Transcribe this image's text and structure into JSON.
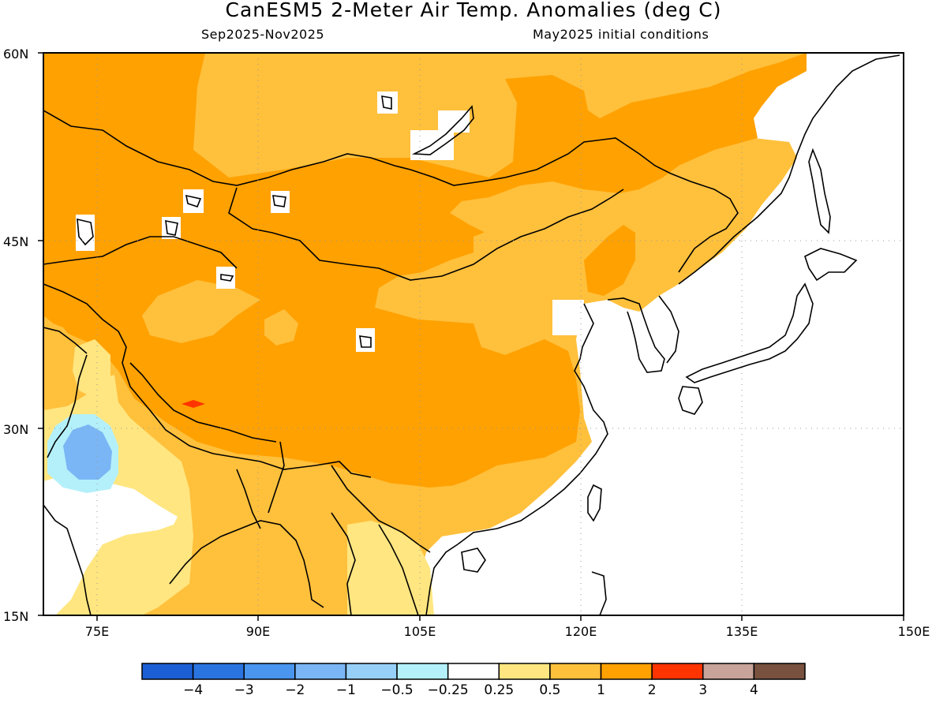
{
  "header": {
    "title": "CanESM5 2-Meter Air Temp. Anomalies (deg C)",
    "period": "Sep2025-Nov2025",
    "initial_conditions": "May2025 initial conditions"
  },
  "map": {
    "lat_range": [
      15,
      60
    ],
    "lon_range": [
      70,
      150
    ],
    "lat_ticks": [
      "60N",
      "45N",
      "30N",
      "15N"
    ],
    "lon_ticks": [
      "75E",
      "90E",
      "105E",
      "120E",
      "135E",
      "150E"
    ],
    "grid": "dotted",
    "region": "East Asia",
    "colors": {
      "anom_lt_-4": "#1c5fd4",
      "anom_-4_-3": "#2a74e0",
      "anom_-3_-2": "#4a95ee",
      "anom_-2_-1": "#7ab6f5",
      "anom_-1_-0.5": "#96d0f9",
      "anom_-0.5_-0.25": "#b4f0fa",
      "anom_neutral": "#ffffff",
      "anom_0.25_0.5": "#ffe680",
      "anom_0.5_1": "#ffc03c",
      "anom_1_2": "#ffa100",
      "anom_2_3": "#ff3400",
      "anom_3_4": "#c8a399",
      "anom_gt_4": "#78523f"
    }
  },
  "colorbar": {
    "labels": [
      "-4",
      "-3",
      "-2",
      "-1",
      "-0.5",
      "-0.25",
      "0.25",
      "0.5",
      "1",
      "2",
      "3",
      "4"
    ],
    "colors": [
      "#1c5fd4",
      "#2a74e0",
      "#4a95ee",
      "#7ab6f5",
      "#96d0f9",
      "#b4f0fa",
      "#ffffff",
      "#ffe680",
      "#ffc03c",
      "#ffa100",
      "#ff3400",
      "#c8a399",
      "#78523f"
    ]
  }
}
